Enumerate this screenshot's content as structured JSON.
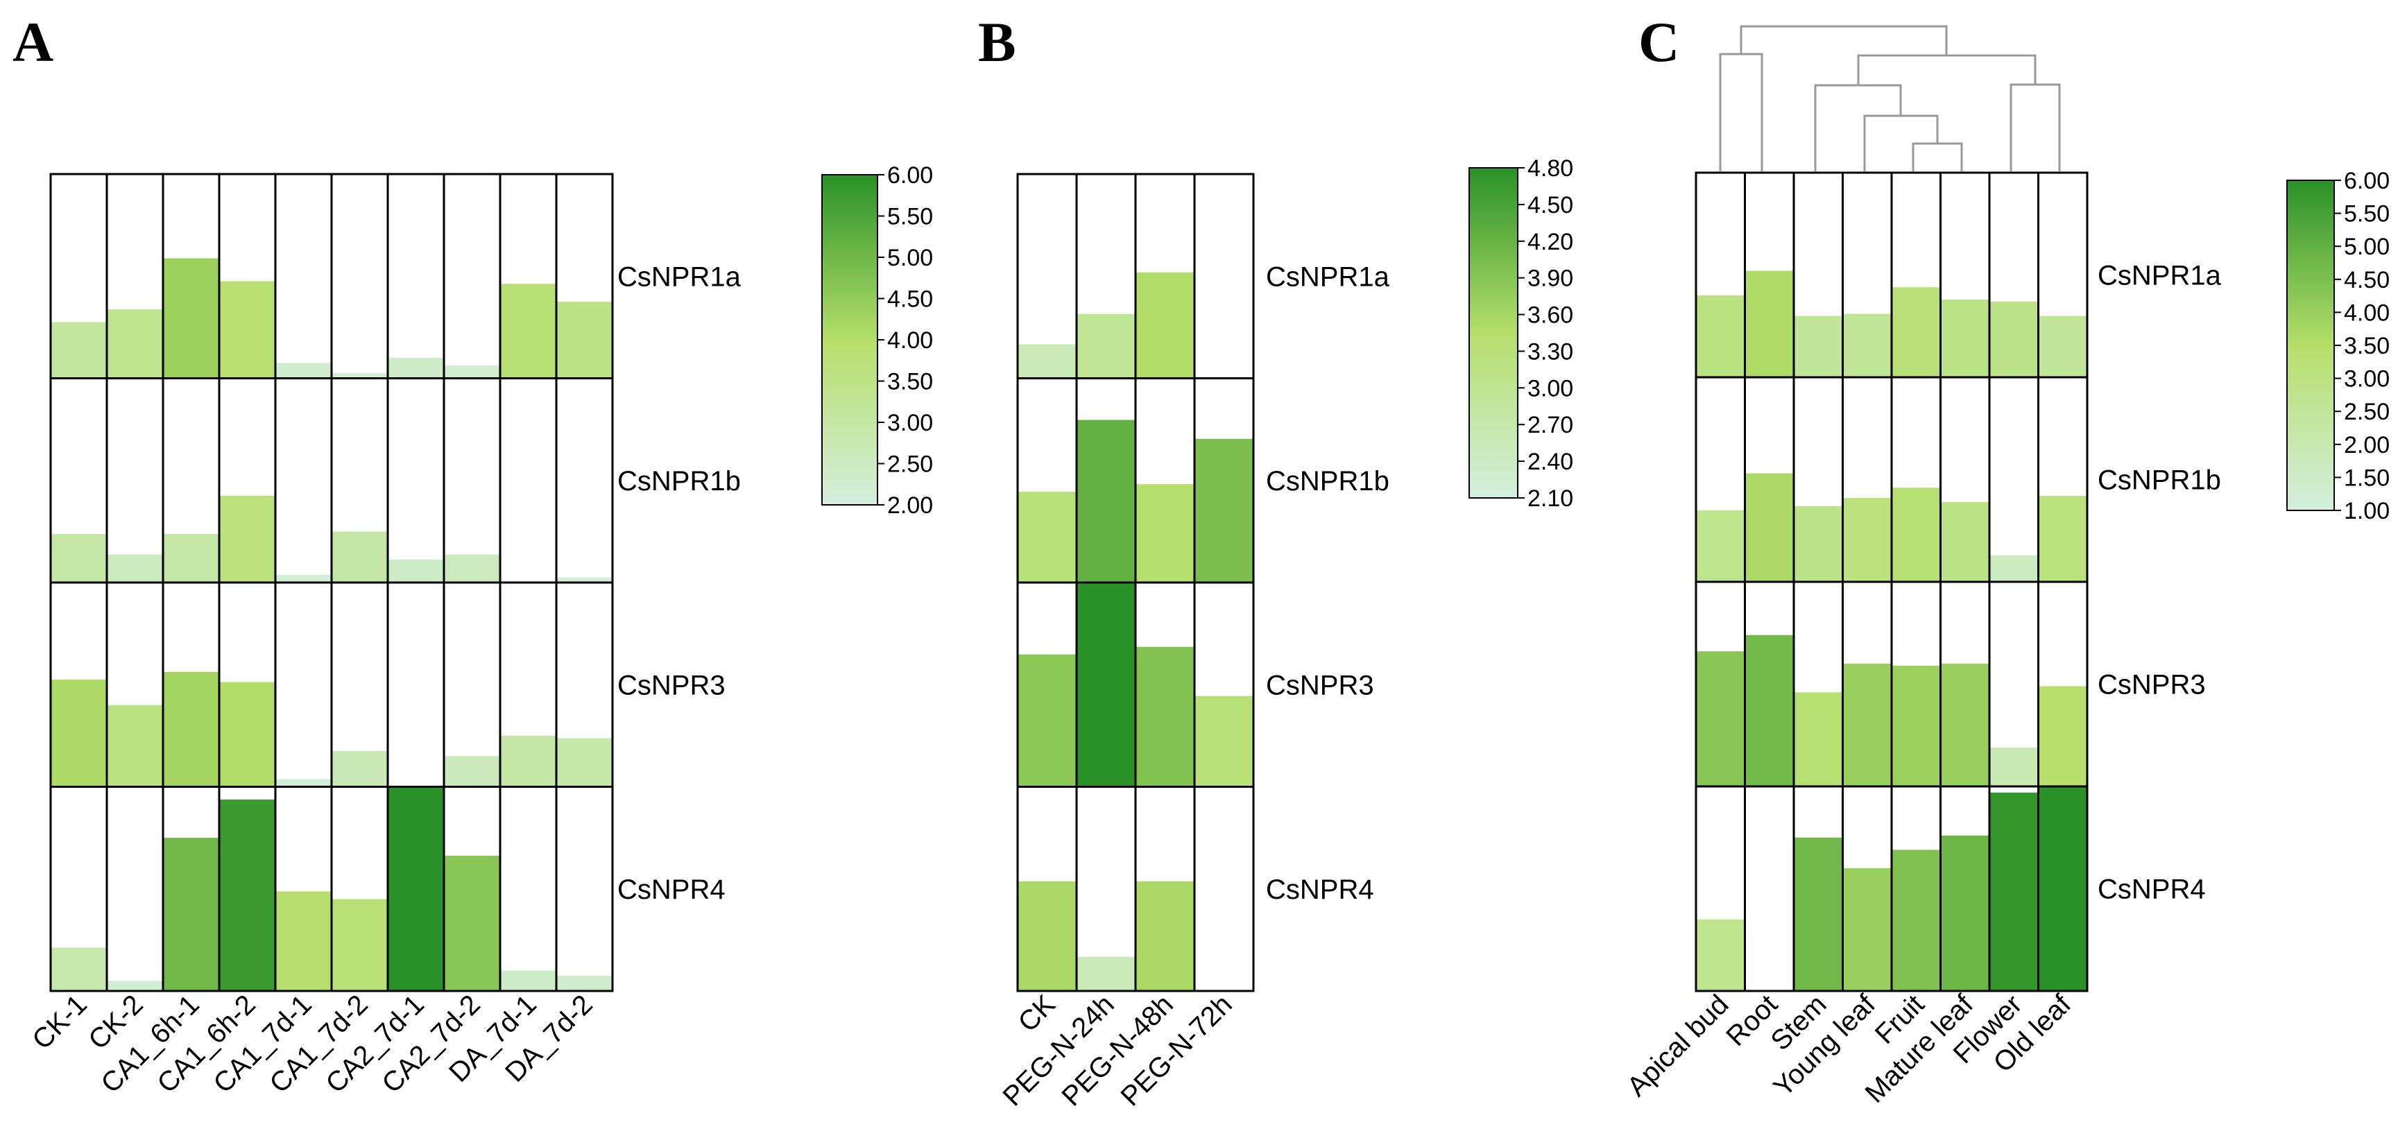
{
  "chart_data": [
    {
      "panel": "A",
      "type": "heatmap",
      "subtype": "bar-in-cell",
      "rows": [
        "CsNPR1a",
        "CsNPR1b",
        "CsNPR3",
        "CsNPR4"
      ],
      "columns": [
        "CK-1",
        "CK-2",
        "CA1_6h-1",
        "CA1_6h-2",
        "CA1_7d-1",
        "CA1_7d-2",
        "CA2_7d-1",
        "CA2_7d-2",
        "DA_7d-1",
        "DA_7d-2"
      ],
      "values": [
        [
          3.1,
          3.35,
          4.35,
          3.9,
          2.3,
          2.1,
          2.4,
          2.25,
          3.85,
          3.5
        ],
        [
          2.95,
          2.55,
          2.95,
          3.7,
          2.15,
          3.0,
          2.45,
          2.55,
          2.0,
          2.1
        ],
        [
          4.1,
          3.6,
          4.25,
          4.05,
          2.15,
          2.7,
          1.95,
          2.6,
          3.0,
          2.95
        ],
        [
          2.85,
          2.2,
          5.0,
          5.75,
          3.95,
          3.8,
          6.0,
          4.65,
          2.4,
          2.3
        ]
      ],
      "colorbar": {
        "min": 2.0,
        "max": 6.0,
        "ticks": [
          "6.00",
          "5.50",
          "5.00",
          "4.50",
          "4.00",
          "3.50",
          "3.00",
          "2.50",
          "2.00"
        ]
      }
    },
    {
      "panel": "B",
      "type": "heatmap",
      "subtype": "bar-in-cell",
      "rows": [
        "CsNPR1a",
        "CsNPR1b",
        "CsNPR3",
        "CsNPR4"
      ],
      "columns": [
        "CK",
        "PEG-N-24h",
        "PEG-N-48h",
        "PEG-N-72h"
      ],
      "values": [
        [
          2.55,
          2.95,
          3.5,
          2.1
        ],
        [
          3.3,
          4.25,
          3.4,
          4.0
        ],
        [
          3.85,
          4.8,
          3.95,
          3.3
        ],
        [
          3.55,
          2.55,
          3.55,
          2.1
        ]
      ],
      "colorbar": {
        "min": 2.1,
        "max": 4.8,
        "ticks": [
          "4.80",
          "4.50",
          "4.20",
          "3.90",
          "3.60",
          "3.30",
          "3.00",
          "2.70",
          "2.40",
          "2.10"
        ]
      }
    },
    {
      "panel": "C",
      "type": "heatmap",
      "subtype": "bar-in-cell",
      "rows": [
        "CsNPR1a",
        "CsNPR1b",
        "CsNPR3",
        "CsNPR4"
      ],
      "columns": [
        "Apical bud",
        "Root",
        "Stem",
        "Young leaf",
        "Fruit",
        "Mature leaf",
        "Flower",
        "Old leaf"
      ],
      "values": [
        [
          3.0,
          3.6,
          2.5,
          2.55,
          3.2,
          2.9,
          2.85,
          2.5
        ],
        [
          2.75,
          3.65,
          2.85,
          3.05,
          3.3,
          2.95,
          1.65,
          3.1
        ],
        [
          4.3,
          4.7,
          3.3,
          4.0,
          3.95,
          4.0,
          1.95,
          3.45
        ],
        [
          2.75,
          1.0,
          4.75,
          4.0,
          4.45,
          4.8,
          5.85,
          6.0
        ]
      ],
      "colorbar": {
        "min": 1.0,
        "max": 6.0,
        "ticks": [
          "6.00",
          "5.50",
          "5.00",
          "4.50",
          "4.00",
          "3.50",
          "3.00",
          "2.50",
          "2.00",
          "1.50",
          "1.00"
        ]
      },
      "dendrogram": "column clustering: (Apical bud, Root) | ((Stem, (Young leaf, (Fruit, Mature leaf))), (Flower, Old leaf))"
    }
  ],
  "colors": {
    "low": "#d4efdf",
    "mid": "#b5df6a",
    "high": "#2a9128",
    "cell_border": "#000000",
    "dendrogram": "#999999"
  },
  "labels": {
    "panel_a": "A",
    "panel_b": "B",
    "panel_c": "C"
  }
}
